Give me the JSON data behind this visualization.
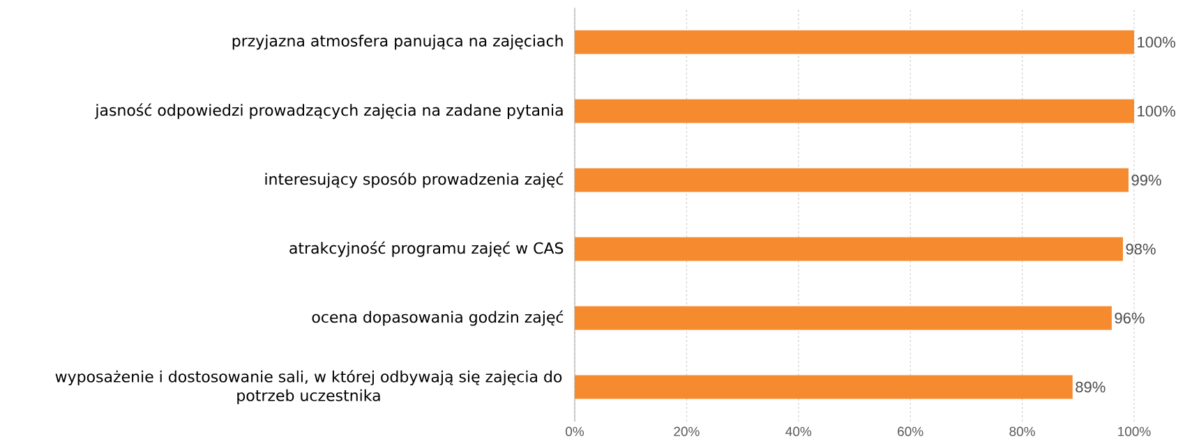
{
  "chart_data": {
    "type": "bar",
    "orientation": "horizontal",
    "categories": [
      "przyjazna atmosfera panująca na zajęciach",
      "jasność odpowiedzi prowadzących zajęcia na zadane pytania",
      "interesujący sposób prowadzenia zajęć",
      "atrakcyjność programu zajęć w CAS",
      "ocena dopasowania godzin zajęć",
      "wyposażenie i dostosowanie sali, w której odbywają się zajęcia do potrzeb uczestnika"
    ],
    "values": [
      100,
      100,
      99,
      98,
      96,
      89
    ],
    "value_labels": [
      "100%",
      "100%",
      "99%",
      "98%",
      "96%",
      "89%"
    ],
    "color": "#f58a2f",
    "xlim": [
      0,
      100
    ],
    "xticks": [
      {
        "value": 0,
        "label": "0%"
      },
      {
        "value": 20,
        "label": "20%"
      },
      {
        "value": 40,
        "label": "40%"
      },
      {
        "value": 60,
        "label": "60%"
      },
      {
        "value": 80,
        "label": "80%"
      },
      {
        "value": 100,
        "label": "100%"
      }
    ],
    "grid": "x"
  }
}
